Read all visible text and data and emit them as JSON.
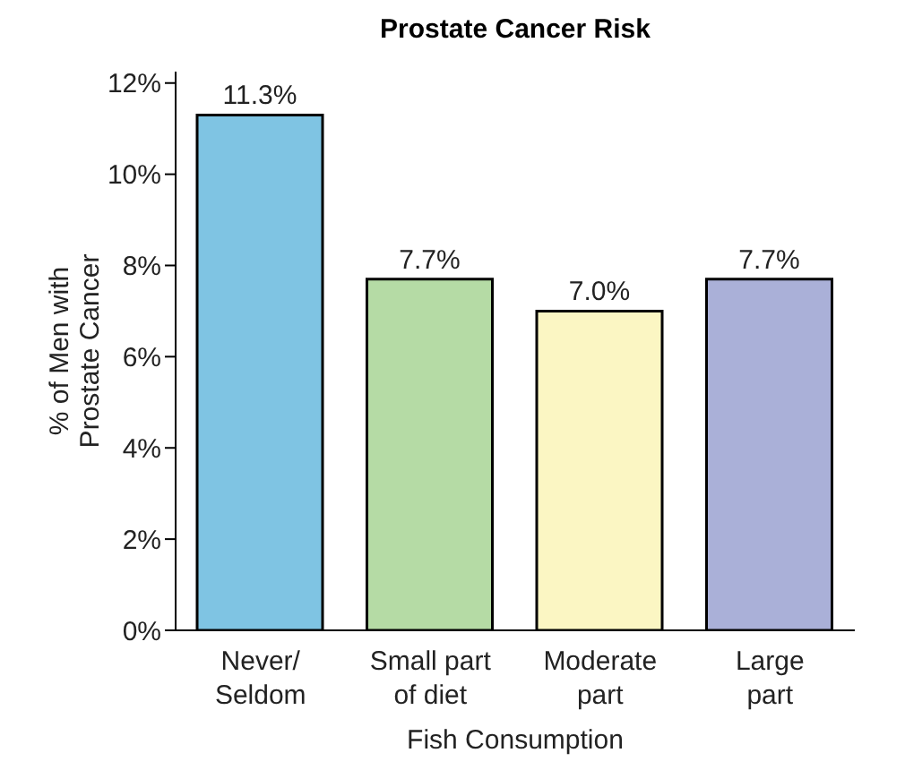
{
  "chart_data": {
    "type": "bar",
    "title": "Prostate Cancer Risk",
    "xlabel": "Fish Consumption",
    "ylabel": "% of Men with\nProstate Cancer",
    "categories": [
      "Never/\nSeldom",
      "Small part\nof diet",
      "Moderate\npart",
      "Large\npart"
    ],
    "values": [
      11.3,
      7.7,
      7.0,
      7.7
    ],
    "colors": [
      "#7fc4e3",
      "#b5dba5",
      "#fbf6c3",
      "#aab0d8"
    ],
    "value_labels": [
      "11.3%",
      "7.7%",
      "7.0%",
      "7.7%"
    ],
    "ylim": [
      0,
      12.25
    ],
    "yticks": [
      {
        "value": 0,
        "label": "0%"
      },
      {
        "value": 2,
        "label": "2%"
      },
      {
        "value": 4,
        "label": "4%"
      },
      {
        "value": 6,
        "label": "6%"
      },
      {
        "value": 8,
        "label": "8%"
      },
      {
        "value": 10,
        "label": "10%"
      },
      {
        "value": 12,
        "label": "12%"
      }
    ],
    "grid": false,
    "legend": false
  }
}
